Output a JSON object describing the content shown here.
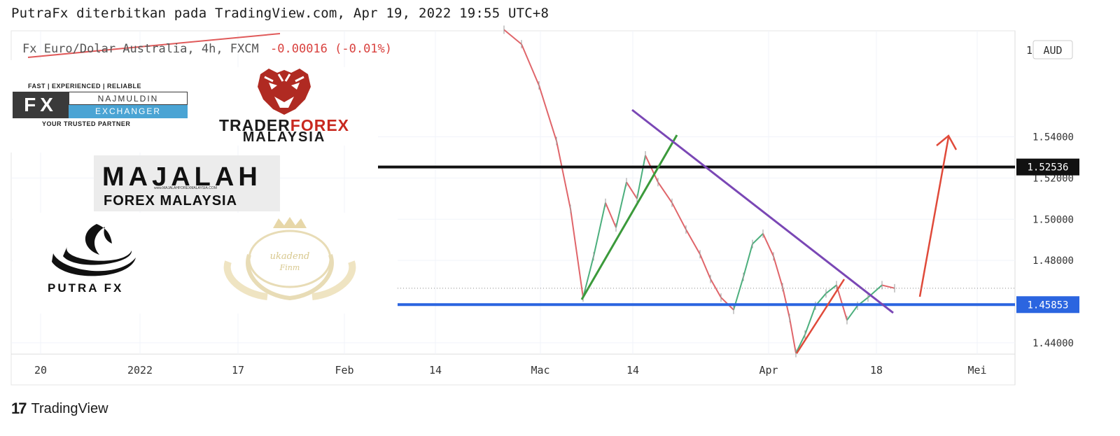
{
  "header": {
    "publish_line": "PutraFx diterbitkan pada TradingView.com, Apr 19, 2022 19:55 UTC+8",
    "symbol_line": "Fx Euro/Dolar Australia, 4h, FXCM",
    "change": "-0.00016 (-0.01%)"
  },
  "footer": {
    "brand": "TradingView",
    "logo": "17"
  },
  "logos": {
    "fx_slogan": "FAST | EXPERIENCED | RELIABLE",
    "fx_box": "FX",
    "fx_name1": "NAJMULDIN",
    "fx_name2": "EXCHANGER",
    "fx_partner": "YOUR TRUSTED PARTNER",
    "tfm_trader": "TRADER",
    "tfm_forex": "FOREX",
    "tfm_country": "MALAYSIA",
    "majalah_title": "MAJALAH",
    "majalah_sub": "FOREX  MALAYSIA",
    "majalah_web": "www.MAJALAHFOREXMALAYSIA.COM",
    "putra": "PUTRA FX",
    "ukad_script1": "ukadend",
    "ukad_script2": "Finm"
  },
  "chart_data": {
    "type": "line",
    "currency": "AUD",
    "y_ticks": [
      "1.54000",
      "1.52000",
      "1.50000",
      "1.48000",
      "1.44000"
    ],
    "y_ticks_values": [
      1.54,
      1.52,
      1.5,
      1.48,
      1.44
    ],
    "x_ticks": [
      "20",
      "2022",
      "17",
      "Feb",
      "14",
      "Mac",
      "14",
      "Apr",
      "18",
      "Mei"
    ],
    "ylim": [
      1.4345,
      1.5915
    ],
    "price_labels": [
      {
        "text": "1.52536",
        "value": 1.52536,
        "color": "#111111"
      },
      {
        "text": "1.45853",
        "value": 1.45853,
        "color": "#2b65e0"
      }
    ],
    "last_price": 1.4665,
    "levels": [
      {
        "name": "resistance",
        "value": 1.52536,
        "color": "#111111"
      },
      {
        "name": "support",
        "value": 1.45853,
        "color": "#2b65e0"
      }
    ],
    "series": [
      {
        "values": [
          {
            "x": 720,
            "y": 1.592
          },
          {
            "x": 745,
            "y": 1.585
          },
          {
            "x": 770,
            "y": 1.565
          },
          {
            "x": 795,
            "y": 1.538
          },
          {
            "x": 815,
            "y": 1.505
          },
          {
            "x": 833,
            "y": 1.462
          },
          {
            "x": 848,
            "y": 1.482
          },
          {
            "x": 865,
            "y": 1.508
          },
          {
            "x": 880,
            "y": 1.496
          },
          {
            "x": 895,
            "y": 1.518
          },
          {
            "x": 910,
            "y": 1.51
          },
          {
            "x": 922,
            "y": 1.531
          },
          {
            "x": 940,
            "y": 1.518
          },
          {
            "x": 960,
            "y": 1.508
          },
          {
            "x": 980,
            "y": 1.495
          },
          {
            "x": 1000,
            "y": 1.483
          },
          {
            "x": 1015,
            "y": 1.471
          },
          {
            "x": 1030,
            "y": 1.462
          },
          {
            "x": 1048,
            "y": 1.456
          },
          {
            "x": 1062,
            "y": 1.472
          },
          {
            "x": 1075,
            "y": 1.488
          },
          {
            "x": 1090,
            "y": 1.493
          },
          {
            "x": 1105,
            "y": 1.482
          },
          {
            "x": 1118,
            "y": 1.467
          },
          {
            "x": 1128,
            "y": 1.452
          },
          {
            "x": 1137,
            "y": 1.435
          },
          {
            "x": 1150,
            "y": 1.444
          },
          {
            "x": 1165,
            "y": 1.458
          },
          {
            "x": 1180,
            "y": 1.464
          },
          {
            "x": 1195,
            "y": 1.468
          },
          {
            "x": 1210,
            "y": 1.451
          },
          {
            "x": 1225,
            "y": 1.458
          },
          {
            "x": 1240,
            "y": 1.462
          },
          {
            "x": 1260,
            "y": 1.468
          },
          {
            "x": 1278,
            "y": 1.4665
          }
        ]
      }
    ]
  }
}
